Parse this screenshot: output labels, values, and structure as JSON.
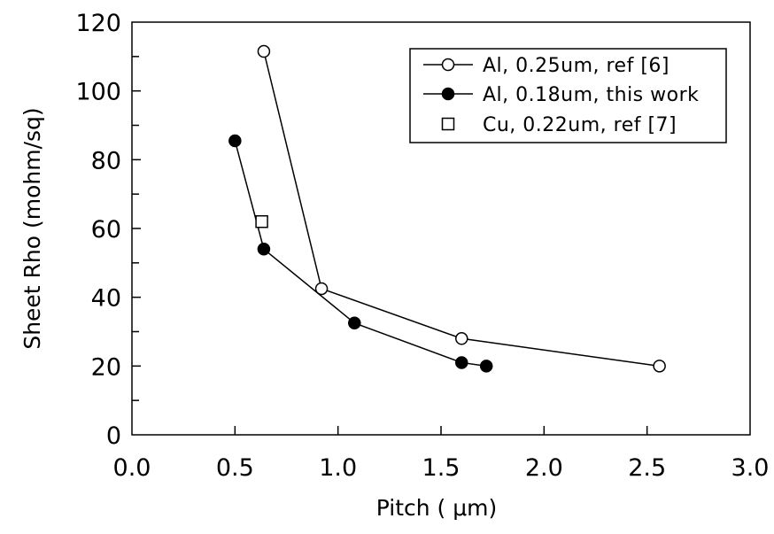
{
  "chart_data": {
    "type": "line",
    "title": "",
    "xlabel": "Pitch ( μm)",
    "ylabel": "Sheet Rho (mohm/sq)",
    "xlim": [
      0,
      3
    ],
    "ylim": [
      0,
      120
    ],
    "x_ticks": [
      "0.0",
      "0.5",
      "1.0",
      "1.5",
      "2.0",
      "2.5",
      "3.0"
    ],
    "y_ticks": [
      "0",
      "20",
      "40",
      "60",
      "80",
      "100",
      "120"
    ],
    "grid": false,
    "legend_position": "top-right",
    "series": [
      {
        "name": "Al, 0.25um, ref [6]",
        "marker": "open-circle",
        "line": true,
        "color": "#000000",
        "x": [
          0.64,
          0.92,
          1.6,
          2.56
        ],
        "y": [
          111.5,
          42.5,
          28,
          20
        ]
      },
      {
        "name": "Al, 0.18um, this work",
        "marker": "filled-circle",
        "line": true,
        "color": "#000000",
        "x": [
          0.5,
          0.64,
          1.08,
          1.6,
          1.72
        ],
        "y": [
          85.5,
          54,
          32.5,
          21,
          20
        ]
      },
      {
        "name": "Cu, 0.22um, ref [7]",
        "marker": "open-square",
        "line": false,
        "color": "#000000",
        "x": [
          0.63
        ],
        "y": [
          62
        ]
      }
    ]
  }
}
